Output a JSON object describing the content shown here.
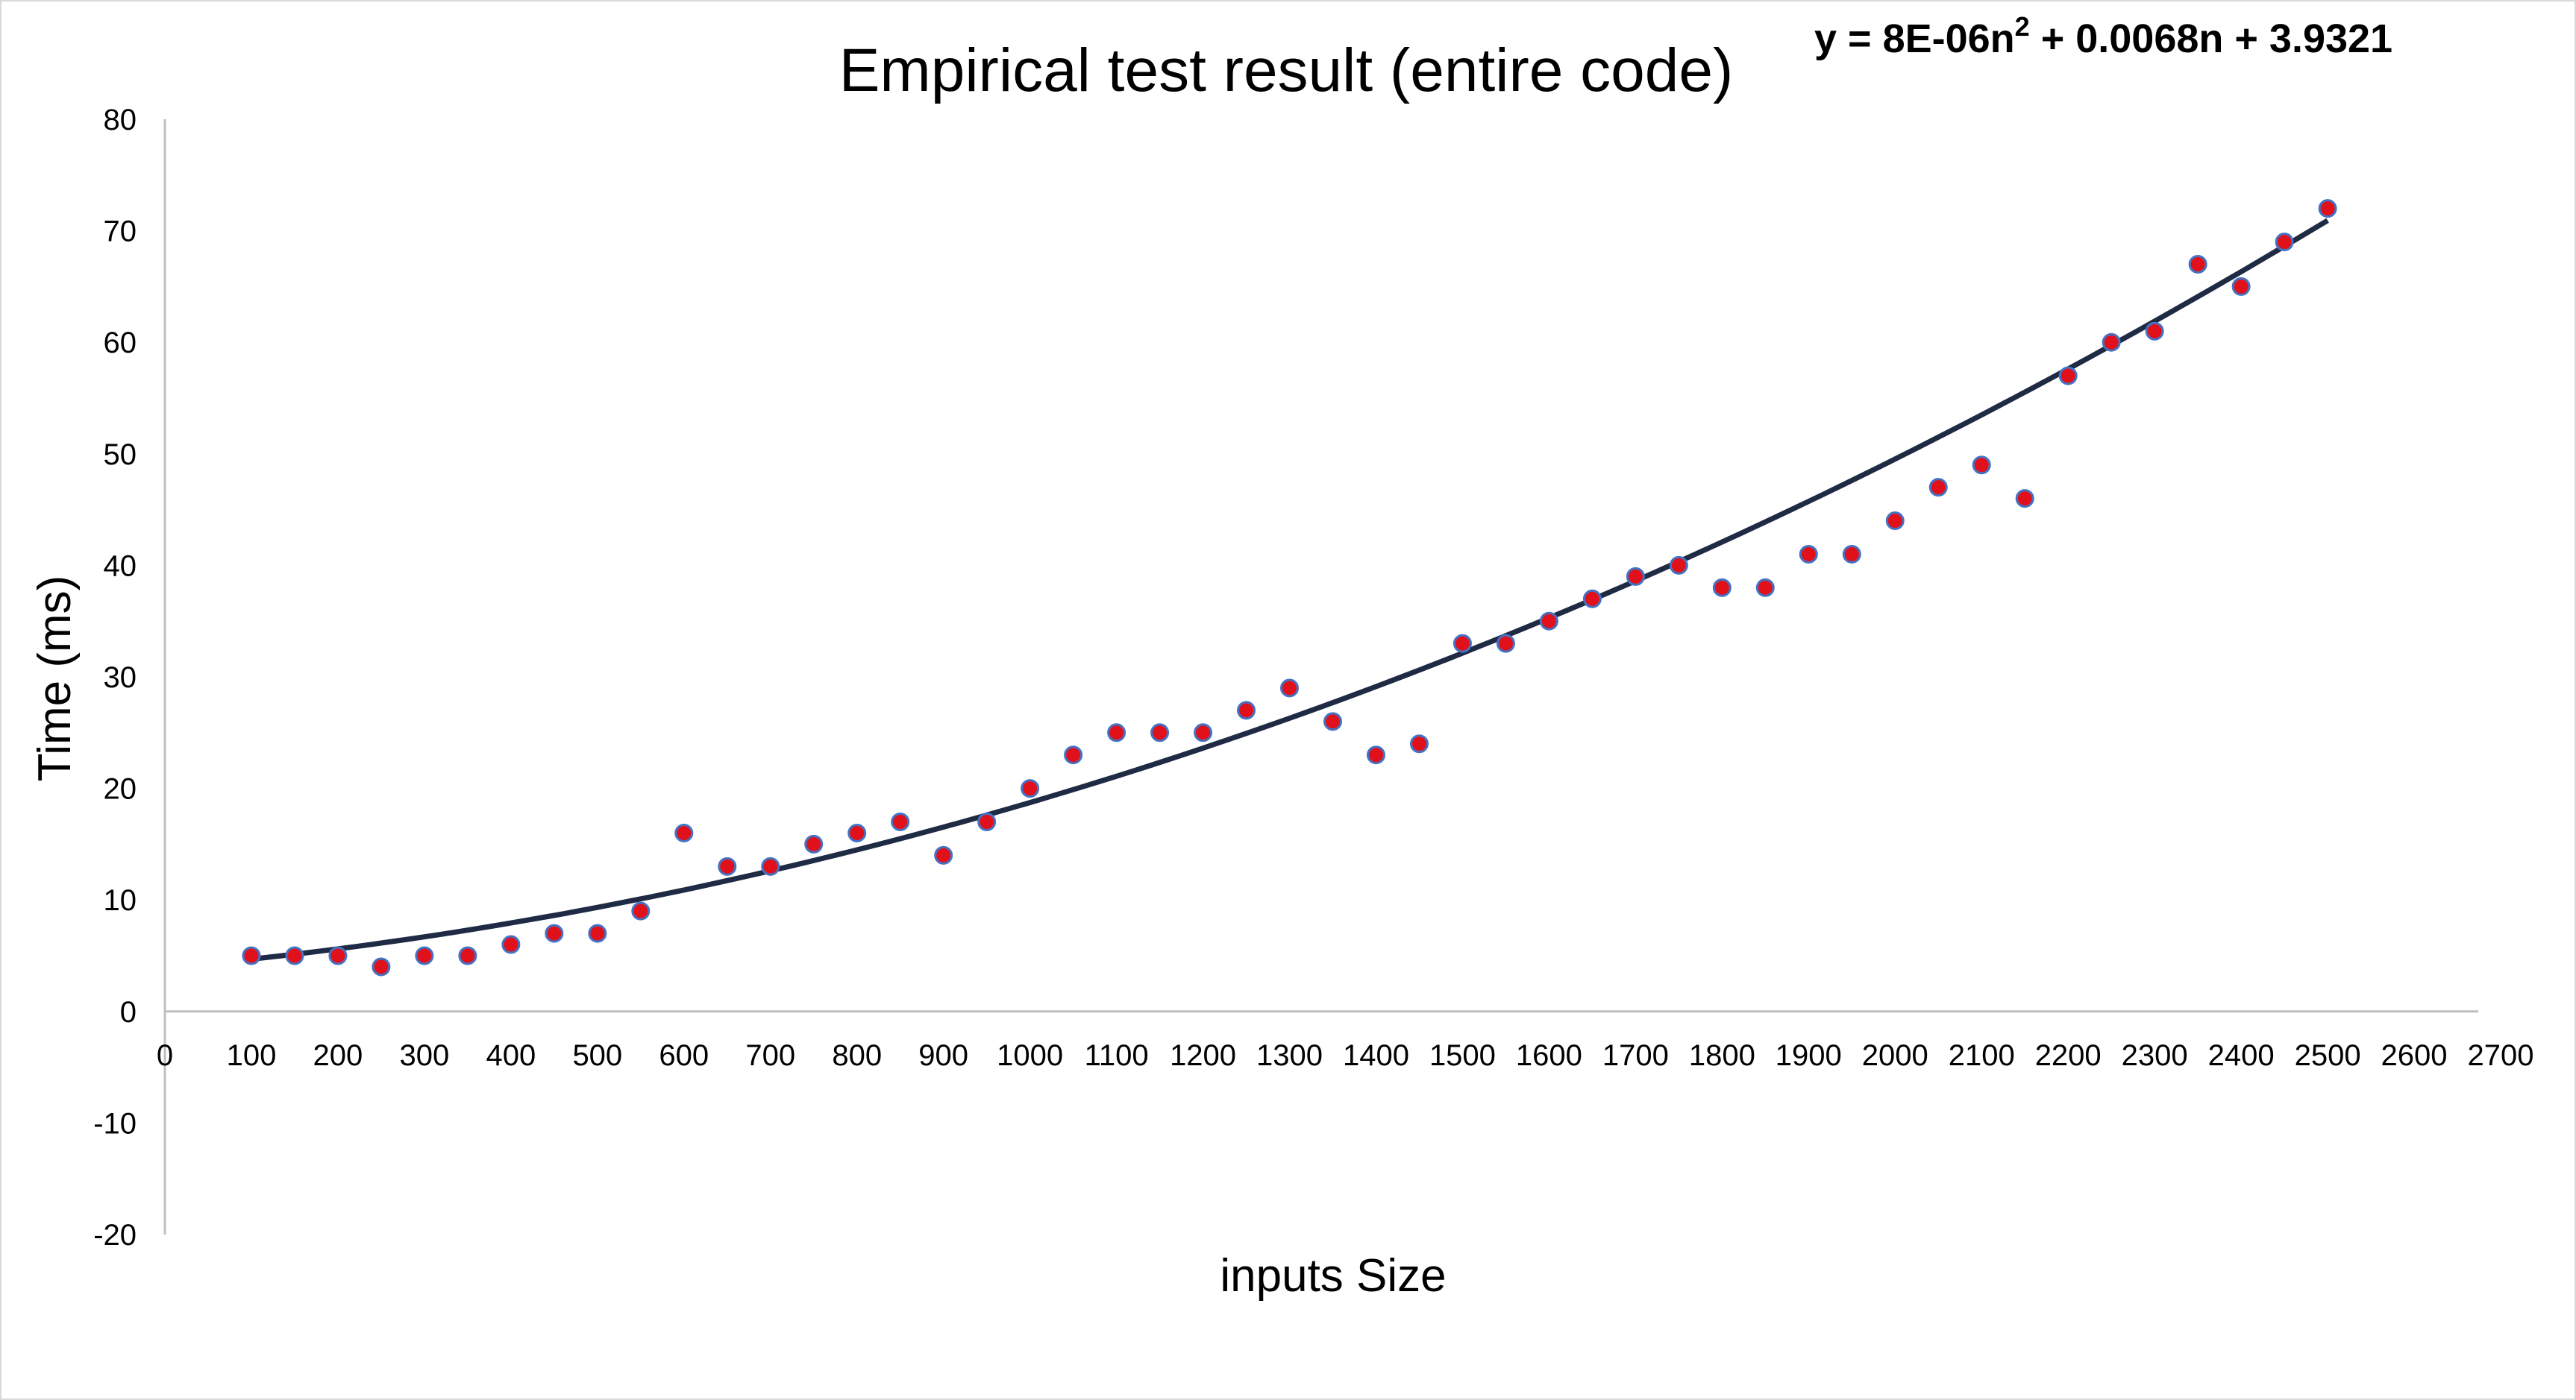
{
  "chart_data": {
    "type": "scatter",
    "title": "Empirical test result (entire code)",
    "xlabel": "inputs Size",
    "ylabel": "Time (ms)",
    "xlim": [
      0,
      2700
    ],
    "ylim": [
      -20,
      80
    ],
    "x_ticks": [
      0,
      100,
      200,
      300,
      400,
      500,
      600,
      700,
      800,
      900,
      1000,
      1100,
      1200,
      1300,
      1400,
      1500,
      1600,
      1700,
      1800,
      1900,
      2000,
      2100,
      2200,
      2300,
      2400,
      2500,
      2600,
      2700
    ],
    "y_ticks": [
      -20,
      -10,
      0,
      10,
      20,
      30,
      40,
      50,
      60,
      70,
      80
    ],
    "grid": false,
    "legend": "none",
    "colors": {
      "point_fill": "#e0111b",
      "point_stroke": "#4472c4",
      "trendline": "#1f2a44"
    },
    "series": [
      {
        "x": [
          100,
          150,
          200,
          250,
          300,
          350,
          400,
          450,
          500,
          550,
          600,
          650,
          700,
          750,
          800,
          850,
          900,
          950,
          1000,
          1050,
          1100,
          1150,
          1200,
          1250,
          1300,
          1350,
          1400,
          1450,
          1500,
          1550,
          1600,
          1650,
          1700,
          1750,
          1800,
          1850,
          1900,
          1950,
          2000,
          2050,
          2100,
          2150,
          2200,
          2250,
          2300,
          2350,
          2400,
          2450,
          2500
        ],
        "y": [
          5,
          5,
          5,
          4,
          5,
          5,
          6,
          7,
          7,
          9,
          16,
          13,
          13,
          15,
          16,
          17,
          14,
          17,
          20,
          23,
          25,
          25,
          25,
          27,
          29,
          26,
          23,
          24,
          33,
          33,
          35,
          37,
          39,
          40,
          38,
          38,
          41,
          41,
          44,
          47,
          49,
          46,
          57,
          60,
          61,
          67,
          65,
          69,
          72
        ]
      }
    ],
    "trendline": {
      "type": "polynomial",
      "coefficients": {
        "a": 8e-06,
        "b": 0.0068,
        "c": 3.9321
      },
      "x_range": [
        100,
        2500
      ],
      "equation": {
        "prefix": "y = 8E-06n",
        "exponent": "2",
        "suffix": " + 0.0068n + 3.9321"
      }
    }
  }
}
